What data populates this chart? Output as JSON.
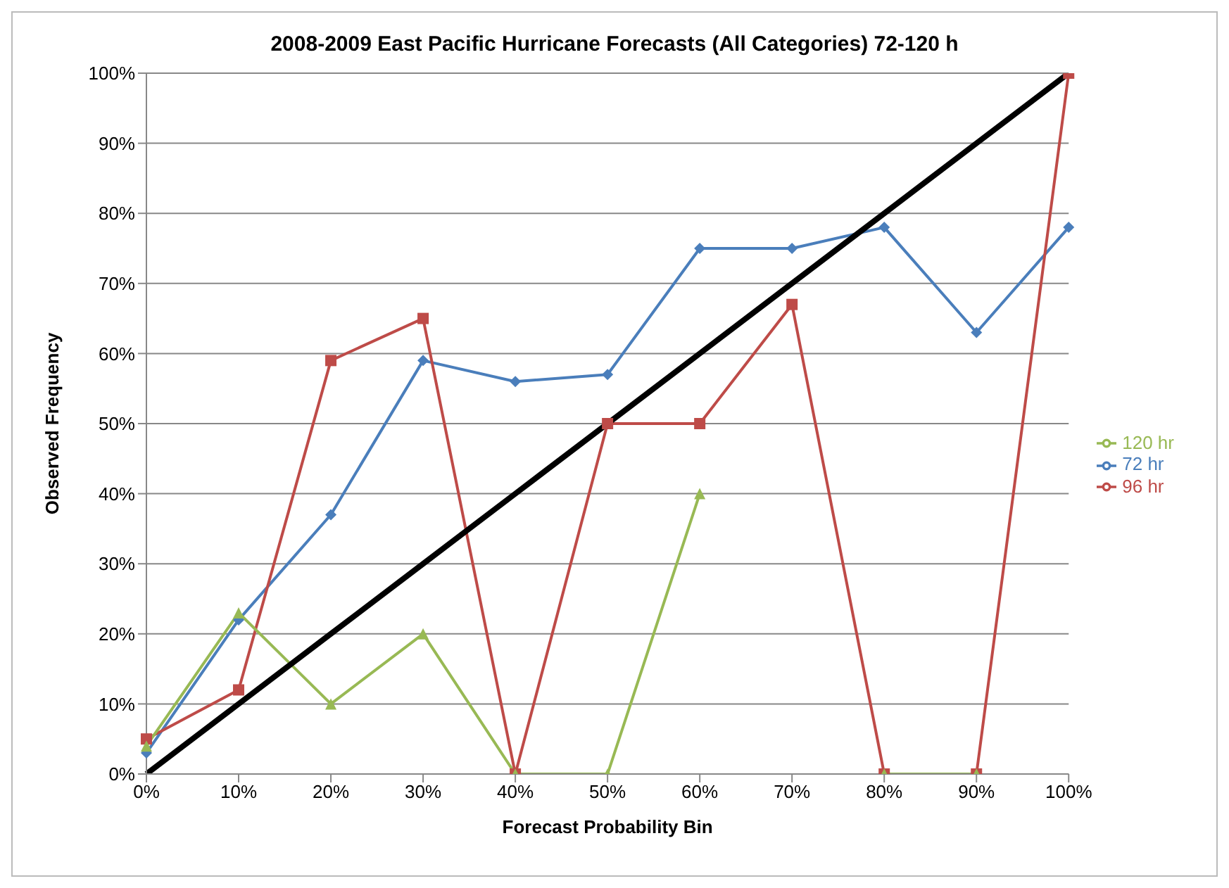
{
  "chart_data": {
    "type": "line",
    "title": "2008-2009 East Pacific Hurricane Forecasts (All Categories) 72-120 h",
    "xlabel": "Forecast Probability Bin",
    "ylabel": "Observed Frequency",
    "categories": [
      "0%",
      "10%",
      "20%",
      "30%",
      "40%",
      "50%",
      "60%",
      "70%",
      "80%",
      "90%",
      "100%"
    ],
    "series": [
      {
        "name": "72 hr",
        "color": "#4a7ebb",
        "marker": "diamond",
        "values": [
          3,
          22,
          37,
          59,
          56,
          57,
          75,
          75,
          78,
          63,
          78
        ]
      },
      {
        "name": "96 hr",
        "color": "#be4b48",
        "marker": "square",
        "values": [
          5,
          12,
          59,
          65,
          0,
          50,
          50,
          67,
          0,
          0,
          100
        ]
      },
      {
        "name": "120 hr",
        "color": "#98b954",
        "marker": "triangle",
        "values": [
          4,
          23,
          10,
          20,
          0,
          0,
          40,
          null,
          0,
          0,
          null
        ]
      },
      {
        "color": "#000000",
        "marker": "none",
        "values": [
          0,
          10,
          20,
          30,
          40,
          50,
          60,
          70,
          80,
          90,
          100
        ]
      }
    ],
    "ylim": [
      0,
      100
    ],
    "yticks": [
      {
        "value": 0,
        "label": "0%"
      },
      {
        "value": 10,
        "label": "10%"
      },
      {
        "value": 20,
        "label": "20%"
      },
      {
        "value": 30,
        "label": "30%"
      },
      {
        "value": 40,
        "label": "40%"
      },
      {
        "value": 50,
        "label": "50%"
      },
      {
        "value": 60,
        "label": "60%"
      },
      {
        "value": 70,
        "label": "70%"
      },
      {
        "value": 80,
        "label": "80%"
      },
      {
        "value": 90,
        "label": "90%"
      },
      {
        "value": 100,
        "label": "100%"
      }
    ],
    "grid": "y",
    "legend": "right"
  }
}
